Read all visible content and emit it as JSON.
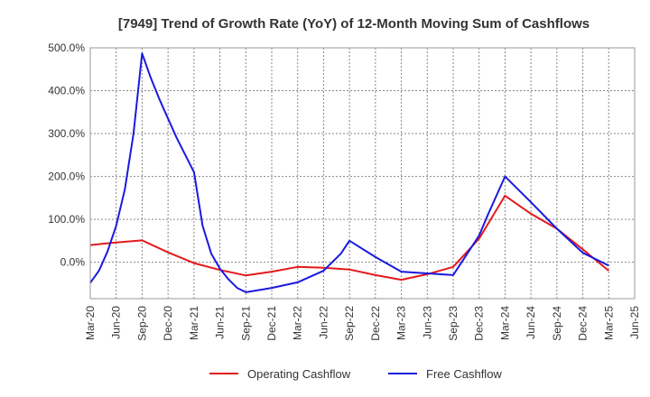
{
  "chart_data": {
    "type": "line",
    "title": "[7949]  Trend of Growth Rate (YoY) of 12-Month Moving Sum of Cashflows",
    "xlabel": "",
    "ylabel": "",
    "ylim": [
      -85,
      500
    ],
    "yticks": [
      0,
      100,
      200,
      300,
      400,
      500
    ],
    "ytick_labels": [
      "0.0%",
      "100.0%",
      "200.0%",
      "300.0%",
      "400.0%",
      "500.0%"
    ],
    "x_tick_labels": [
      "Mar-20",
      "Jun-20",
      "Sep-20",
      "Dec-20",
      "Mar-21",
      "Jun-21",
      "Sep-21",
      "Dec-21",
      "Mar-22",
      "Jun-22",
      "Sep-22",
      "Dec-22",
      "Mar-23",
      "Jun-23",
      "Sep-23",
      "Dec-23",
      "Mar-24",
      "Jun-24",
      "Sep-24",
      "Dec-24",
      "Mar-25",
      "Jun-25"
    ],
    "grid": true,
    "legend_position": "bottom",
    "series": [
      {
        "name": "Operating Cashflow",
        "color": "#e31a1c",
        "points": [
          [
            "Mar-20",
            40
          ],
          [
            "Jun-20",
            46
          ],
          [
            "Sep-20",
            51
          ],
          [
            "Dec-20",
            23
          ],
          [
            "Mar-21",
            -2
          ],
          [
            "Jun-21",
            -18
          ],
          [
            "Sep-21",
            -31
          ],
          [
            "Dec-21",
            -22
          ],
          [
            "Mar-22",
            -11
          ],
          [
            "Jun-22",
            -13
          ],
          [
            "Sep-22",
            -17
          ],
          [
            "Dec-22",
            -30
          ],
          [
            "Mar-23",
            -41
          ],
          [
            "Jun-23",
            -28
          ],
          [
            "Sep-23",
            -11
          ],
          [
            "Dec-23",
            55
          ],
          [
            "Mar-24",
            155
          ],
          [
            "Jun-24",
            113
          ],
          [
            "Sep-24",
            78
          ],
          [
            "Dec-24",
            30
          ],
          [
            "Mar-25",
            -20
          ]
        ]
      },
      {
        "name": "Free Cashflow",
        "color": "#1a1adf",
        "points": [
          [
            "Mar-20",
            -48
          ],
          [
            "Apr-20",
            -20
          ],
          [
            "May-20",
            25
          ],
          [
            "Jun-20",
            85
          ],
          [
            "Jul-20",
            170
          ],
          [
            "Aug-20",
            300
          ],
          [
            "Sep-20",
            487
          ],
          [
            "Oct-20",
            430
          ],
          [
            "Nov-20",
            380
          ],
          [
            "Dec-20",
            335
          ],
          [
            "Jan-21",
            290
          ],
          [
            "Feb-21",
            250
          ],
          [
            "Mar-21",
            210
          ],
          [
            "Apr-21",
            85
          ],
          [
            "May-21",
            20
          ],
          [
            "Jun-21",
            -15
          ],
          [
            "Jul-21",
            -40
          ],
          [
            "Aug-21",
            -60
          ],
          [
            "Sep-21",
            -70
          ],
          [
            "Dec-21",
            -60
          ],
          [
            "Mar-22",
            -47
          ],
          [
            "Jun-22",
            -20
          ],
          [
            "Aug-22",
            20
          ],
          [
            "Sep-22",
            50
          ],
          [
            "Dec-22",
            12
          ],
          [
            "Mar-23",
            -22
          ],
          [
            "Jun-23",
            -26
          ],
          [
            "Sep-23",
            -30
          ],
          [
            "Dec-23",
            62
          ],
          [
            "Jan-24",
            110
          ],
          [
            "Feb-24",
            155
          ],
          [
            "Mar-24",
            200
          ],
          [
            "Jun-24",
            140
          ],
          [
            "Sep-24",
            78
          ],
          [
            "Dec-24",
            22
          ],
          [
            "Mar-25",
            -8
          ]
        ]
      }
    ]
  }
}
